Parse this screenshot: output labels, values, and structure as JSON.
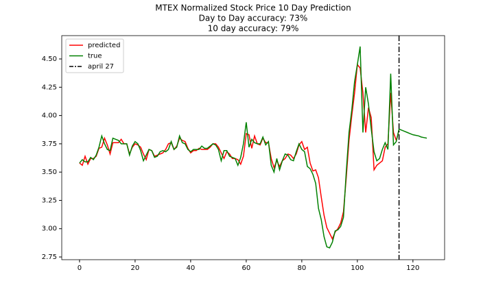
{
  "chart_data": {
    "type": "line",
    "title": "MTEX Normalized Stock Price 10 Day Prediction",
    "subtitles": [
      "Day to Day accuracy: 73%",
      "10 day accuracy: 79%"
    ],
    "x": [
      0,
      1,
      2,
      3,
      4,
      5,
      6,
      7,
      8,
      9,
      10,
      11,
      12,
      13,
      14,
      15,
      16,
      17,
      18,
      19,
      20,
      21,
      22,
      23,
      24,
      25,
      26,
      27,
      28,
      29,
      30,
      31,
      32,
      33,
      34,
      35,
      36,
      37,
      38,
      39,
      40,
      41,
      42,
      43,
      44,
      45,
      46,
      47,
      48,
      49,
      50,
      51,
      52,
      53,
      54,
      55,
      56,
      57,
      58,
      59,
      60,
      61,
      62,
      63,
      64,
      65,
      66,
      67,
      68,
      69,
      70,
      71,
      72,
      73,
      74,
      75,
      76,
      77,
      78,
      79,
      80,
      81,
      82,
      83,
      84,
      85,
      86,
      87,
      88,
      89,
      90,
      91,
      92,
      93,
      94,
      95,
      96,
      97,
      98,
      99,
      100,
      101,
      102,
      103,
      104,
      105,
      106,
      107,
      108,
      109,
      110,
      111,
      112,
      113,
      114,
      115,
      116,
      117,
      118,
      119,
      120,
      121,
      122,
      123,
      124,
      125
    ],
    "series": [
      {
        "name": "predicted",
        "color": "#ff0000",
        "values": [
          3.58,
          3.56,
          3.64,
          3.57,
          3.62,
          3.62,
          3.64,
          3.71,
          3.72,
          3.8,
          3.74,
          3.66,
          3.76,
          3.76,
          3.76,
          3.79,
          3.75,
          3.75,
          3.66,
          3.72,
          3.75,
          3.74,
          3.72,
          3.66,
          3.61,
          3.7,
          3.69,
          3.64,
          3.65,
          3.66,
          3.67,
          3.7,
          3.75,
          3.76,
          3.7,
          3.73,
          3.8,
          3.78,
          3.77,
          3.71,
          3.67,
          3.69,
          3.69,
          3.71,
          3.7,
          3.7,
          3.7,
          3.72,
          3.75,
          3.75,
          3.72,
          3.67,
          3.62,
          3.68,
          3.66,
          3.62,
          3.62,
          3.61,
          3.57,
          3.64,
          3.84,
          3.83,
          3.71,
          3.82,
          3.75,
          3.74,
          3.8,
          3.76,
          3.76,
          3.62,
          3.54,
          3.6,
          3.55,
          3.6,
          3.62,
          3.66,
          3.65,
          3.62,
          3.66,
          3.74,
          3.77,
          3.7,
          3.72,
          3.58,
          3.51,
          3.52,
          3.45,
          3.28,
          3.12,
          3.01,
          2.96,
          2.91,
          2.97,
          3.0,
          3.05,
          3.15,
          3.45,
          3.78,
          4.0,
          4.2,
          4.45,
          4.42,
          4.2,
          3.85,
          4.07,
          3.98,
          3.52,
          3.56,
          3.58,
          3.6,
          3.72,
          3.75,
          4.2,
          3.85,
          3.78,
          3.87,
          null,
          null,
          null,
          null,
          null,
          null,
          null,
          null,
          null,
          null
        ]
      },
      {
        "name": "true",
        "color": "#008000",
        "values": [
          3.58,
          3.61,
          3.59,
          3.59,
          3.63,
          3.61,
          3.65,
          3.72,
          3.82,
          3.75,
          3.7,
          3.69,
          3.8,
          3.79,
          3.78,
          3.75,
          3.75,
          3.75,
          3.65,
          3.73,
          3.77,
          3.75,
          3.69,
          3.6,
          3.65,
          3.7,
          3.69,
          3.63,
          3.64,
          3.68,
          3.69,
          3.68,
          3.7,
          3.77,
          3.7,
          3.72,
          3.82,
          3.76,
          3.75,
          3.7,
          3.68,
          3.7,
          3.7,
          3.7,
          3.73,
          3.71,
          3.71,
          3.73,
          3.75,
          3.74,
          3.7,
          3.6,
          3.69,
          3.69,
          3.64,
          3.63,
          3.62,
          3.56,
          3.63,
          3.75,
          3.94,
          3.72,
          3.79,
          3.76,
          3.75,
          3.75,
          3.81,
          3.74,
          3.77,
          3.56,
          3.5,
          3.62,
          3.52,
          3.6,
          3.66,
          3.65,
          3.61,
          3.6,
          3.68,
          3.75,
          3.7,
          3.68,
          3.55,
          3.53,
          3.48,
          3.4,
          3.18,
          3.08,
          2.93,
          2.84,
          2.83,
          2.88,
          2.98,
          2.99,
          3.02,
          3.1,
          3.5,
          3.85,
          4.05,
          4.3,
          4.45,
          4.61,
          3.85,
          4.25,
          4.1,
          3.88,
          3.68,
          3.6,
          3.62,
          3.7,
          3.76,
          3.7,
          4.37,
          3.74,
          3.77,
          3.88,
          3.87,
          3.86,
          3.85,
          3.84,
          3.83,
          3.825,
          3.82,
          3.81,
          3.805,
          3.8
        ]
      }
    ],
    "vline": {
      "x": 115,
      "name": "april 27",
      "color": "#000000"
    },
    "xlim": [
      -6.4,
      131.4
    ],
    "xticks": [
      0,
      20,
      40,
      60,
      80,
      100,
      120
    ],
    "ylim": [
      2.726,
      4.706
    ],
    "yticks": [
      2.75,
      {
        "value": 3,
        "label": "3.00"
      },
      3.25,
      {
        "value": 3.5,
        "label": "3.50"
      },
      3.75,
      {
        "value": 4,
        "label": "4.00"
      },
      4.25,
      {
        "value": 4.5,
        "label": "4.50"
      }
    ],
    "grid": false,
    "legend": "upper left"
  }
}
